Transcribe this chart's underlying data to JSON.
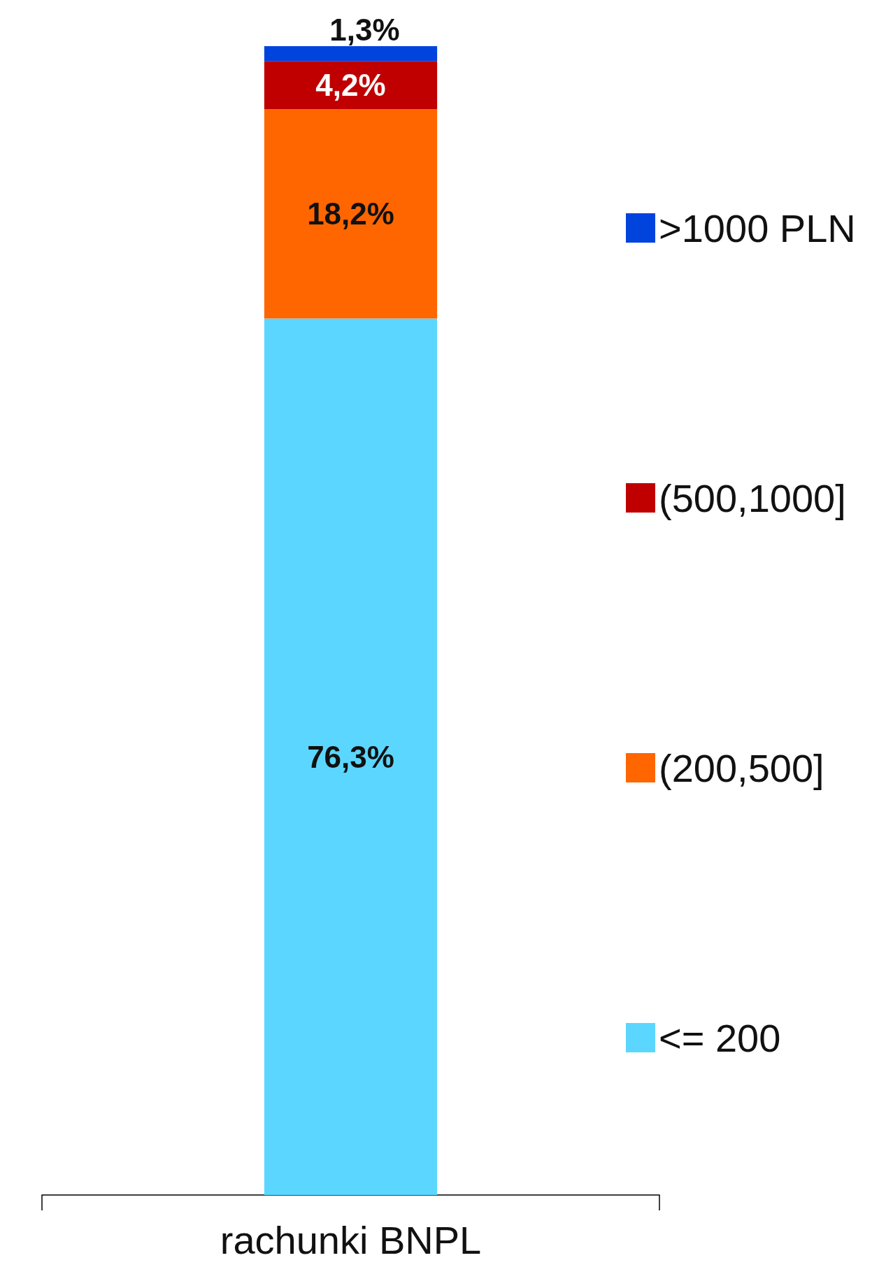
{
  "chart_data": {
    "type": "bar",
    "stacked": true,
    "categories": [
      "rachunki BNPL"
    ],
    "legend": "right",
    "grid": false,
    "series": [
      {
        "name": "<= 200",
        "color": "#5bd7ff",
        "values": [
          76.3
        ],
        "value_labels": [
          "76,3%"
        ]
      },
      {
        "name": "(200,500]",
        "color": "#ff6600",
        "values": [
          18.2
        ],
        "value_labels": [
          "18,2%"
        ]
      },
      {
        "name": "(500,1000]",
        "color": "#c00000",
        "values": [
          4.2
        ],
        "value_labels": [
          "4,2%"
        ]
      },
      {
        "name": ">1000 PLN",
        "color": "#0044dd",
        "values": [
          1.3
        ],
        "value_labels": [
          "1,3%"
        ]
      }
    ]
  }
}
